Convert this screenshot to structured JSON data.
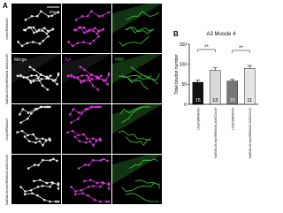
{
  "panel_a": {
    "label": "A",
    "column_headers": [
      "Merge",
      "Syt",
      "HRP"
    ],
    "row_labels": [
      "Unpr/SRNAi#1+",
      "fudGAL4/Unpr/SRNAi#1;UAS-Dcr2+",
      "Unpr/SRNAi#2+",
      "fudGAL4/Unpr/SRNAi#2;UAS-Dcr2+"
    ],
    "scale_bar": "20μm"
  },
  "panel_b": {
    "label": "B",
    "type": "bar",
    "title": "A3 Muscle 4",
    "y_label": "Total bouton number",
    "categories": [
      "Unpr/SRNAi#1+",
      "fudGAL4/Unpr/SRNAi#1;UAS-Dcr2+",
      "Unpr/SRNAi#2+",
      "fudGAL4/Unpr/SRNAi#2;UAS-Dcr2+"
    ],
    "values": [
      55,
      85,
      58,
      90
    ],
    "errors": [
      5,
      6,
      4,
      7
    ],
    "colors": [
      "#111111",
      "#d9d9d9",
      "#777777",
      "#e6e6e6"
    ],
    "n": [
      "15",
      "13",
      "15",
      "11"
    ],
    "significance": [
      "**",
      "**"
    ],
    "ylim": [
      0,
      150
    ],
    "yticks": [
      0,
      50,
      100,
      150
    ]
  }
}
